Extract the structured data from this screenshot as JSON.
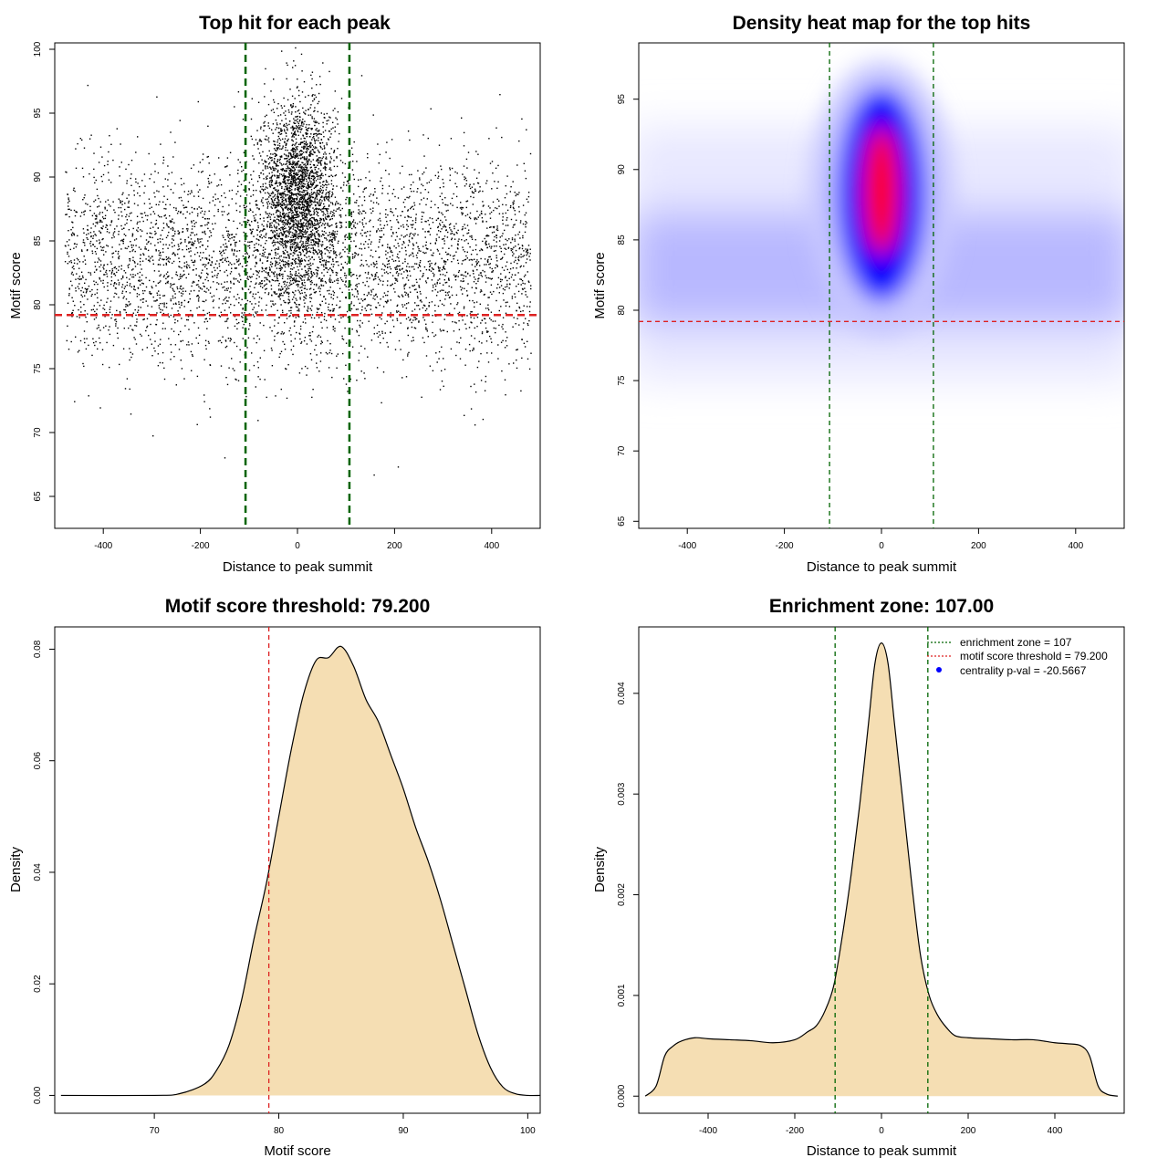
{
  "colors": {
    "green_line": "#006400",
    "red_line": "#dd2222",
    "fill": "#f5deb3",
    "points": "#000000",
    "heat_low": "#ffffff",
    "heat_mid": "#0000ff",
    "heat_high": "#ff0000",
    "legend_point": "#0000ff"
  },
  "chart_data": [
    {
      "id": "scatter",
      "type": "scatter",
      "title": "Top hit for each peak",
      "xlabel": "Distance to peak summit",
      "ylabel": "Motif score",
      "xlim": [
        -500,
        500
      ],
      "ylim": [
        62.5,
        100.5
      ],
      "xticks": [
        "-400",
        "-200",
        "0",
        "200",
        "400"
      ],
      "yticks": [
        "65",
        "70",
        "75",
        "80",
        "85",
        "90",
        "95",
        "100"
      ],
      "vlines": [
        -107,
        107
      ],
      "hline": 79.2,
      "point_density": {
        "background": {
          "x_range": [
            -480,
            480
          ],
          "y_mean": 83.5,
          "y_sd": 4.0,
          "approx_points": 4200
        },
        "central": {
          "x_mean": 0,
          "x_sd": 38,
          "y_mean": 88.5,
          "y_sd": 3.8,
          "approx_points": 2600
        }
      }
    },
    {
      "id": "heatmap",
      "type": "heatmap",
      "title": "Density heat map for the top hits",
      "xlabel": "Distance to peak summit",
      "ylabel": "Motif score",
      "xlim": [
        -500,
        500
      ],
      "ylim": [
        64.5,
        99
      ],
      "xticks": [
        "-400",
        "-200",
        "0",
        "200",
        "400"
      ],
      "yticks": [
        "65",
        "70",
        "75",
        "80",
        "85",
        "90",
        "95"
      ],
      "vlines": [
        -107,
        107
      ],
      "hline": 79.2,
      "color_scale": [
        "white",
        "blue",
        "red"
      ],
      "hotspot": {
        "x": 0,
        "y": 88.5
      }
    },
    {
      "id": "score_density",
      "type": "area",
      "title": "Motif score threshold: 79.200",
      "xlabel": "Motif score",
      "ylabel": "Density",
      "xlim": [
        62,
        101
      ],
      "ylim": [
        -0.0032,
        0.084
      ],
      "xticks": [
        "70",
        "80",
        "90",
        "100"
      ],
      "yticks": [
        "0.00",
        "0.02",
        "0.04",
        "0.06",
        "0.08"
      ],
      "vline": 79.2,
      "x": [
        62.5,
        70,
        72,
        74,
        75,
        76,
        77,
        78,
        79,
        80,
        81,
        82,
        83,
        84,
        85,
        86,
        87,
        88,
        89,
        90,
        91,
        92,
        93,
        94,
        95,
        96,
        97,
        98,
        99,
        100,
        101
      ],
      "y": [
        0,
        0,
        0.0003,
        0.002,
        0.0045,
        0.009,
        0.017,
        0.028,
        0.038,
        0.05,
        0.062,
        0.072,
        0.078,
        0.0785,
        0.0805,
        0.077,
        0.071,
        0.067,
        0.061,
        0.055,
        0.048,
        0.042,
        0.035,
        0.027,
        0.019,
        0.011,
        0.005,
        0.0015,
        0.0003,
        0,
        0
      ]
    },
    {
      "id": "distance_density",
      "type": "area",
      "title": "Enrichment zone: 107.00",
      "xlabel": "Distance to peak summit",
      "ylabel": "Density",
      "xlim": [
        -560,
        560
      ],
      "ylim": [
        -0.00017,
        0.00466
      ],
      "xticks": [
        "-400",
        "-200",
        "0",
        "200",
        "400"
      ],
      "yticks": [
        "0.000",
        "0.001",
        "0.002",
        "0.003",
        "0.004"
      ],
      "vlines": [
        -107,
        107
      ],
      "x": [
        -545,
        -520,
        -500,
        -480,
        -460,
        -430,
        -400,
        -350,
        -300,
        -250,
        -200,
        -170,
        -150,
        -130,
        -110,
        -90,
        -70,
        -50,
        -30,
        -15,
        0,
        15,
        30,
        50,
        70,
        90,
        110,
        130,
        150,
        170,
        200,
        250,
        300,
        350,
        400,
        430,
        460,
        480,
        500,
        520,
        545
      ],
      "y": [
        0,
        0.0001,
        0.0004,
        0.0005,
        0.00055,
        0.00058,
        0.00057,
        0.00056,
        0.00055,
        0.00053,
        0.00056,
        0.00064,
        0.0007,
        0.00085,
        0.0011,
        0.0016,
        0.0022,
        0.0029,
        0.0037,
        0.0043,
        0.0045,
        0.0043,
        0.0037,
        0.0029,
        0.0021,
        0.0014,
        0.001,
        0.0008,
        0.00068,
        0.0006,
        0.00058,
        0.00057,
        0.00056,
        0.00056,
        0.00053,
        0.00052,
        0.0005,
        0.0004,
        0.0001,
        2e-05,
        0
      ],
      "legend": [
        {
          "label": "enrichment zone = 107",
          "kind": "line",
          "color": "#006400"
        },
        {
          "label": "motif score threshold = 79.200",
          "kind": "line",
          "color": "#dd2222"
        },
        {
          "label": "centrality p-val = -20.5667",
          "kind": "point",
          "color": "#0000ff"
        }
      ],
      "legend_position": "top-right"
    }
  ]
}
